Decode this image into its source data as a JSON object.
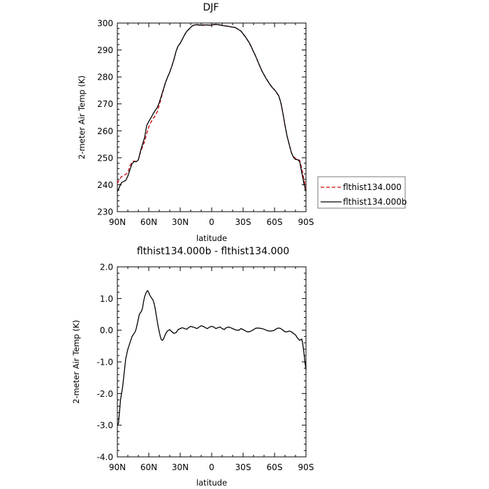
{
  "chart_data": [
    {
      "type": "line",
      "title": "DJF",
      "xlabel": "latitude",
      "ylabel": "2-meter Air Temp (K)",
      "xlim": [
        90,
        -90
      ],
      "ylim": [
        230,
        300
      ],
      "x_ticks": [
        90,
        60,
        30,
        0,
        -30,
        -60,
        -90
      ],
      "x_tick_labels": [
        "90N",
        "60N",
        "30N",
        "0",
        "30S",
        "60S",
        "90S"
      ],
      "y_ticks": [
        230,
        240,
        250,
        260,
        270,
        280,
        290,
        300
      ],
      "y_tick_labels": [
        "230",
        "240",
        "250",
        "260",
        "270",
        "280",
        "290",
        "300"
      ],
      "legend": {
        "placement": "right",
        "entries": [
          "flthist134.000",
          "flthist134.000b"
        ]
      },
      "series": [
        {
          "name": "flthist134.000",
          "color": "#cc0000",
          "style": "dashed",
          "x": [
            90,
            88,
            86,
            84,
            82,
            80,
            78,
            76,
            74,
            72,
            70,
            68,
            66,
            64,
            62,
            60,
            58,
            56,
            54,
            52,
            50,
            48,
            46,
            44,
            42,
            40,
            38,
            36,
            34,
            32,
            30,
            28,
            26,
            24,
            22,
            20,
            18,
            16,
            14,
            12,
            10,
            8,
            6,
            4,
            2,
            0,
            -2,
            -4,
            -6,
            -8,
            -10,
            -12,
            -14,
            -16,
            -18,
            -20,
            -22,
            -24,
            -26,
            -28,
            -30,
            -32,
            -34,
            -36,
            -38,
            -40,
            -42,
            -44,
            -46,
            -48,
            -50,
            -52,
            -54,
            -56,
            -58,
            -60,
            -62,
            -64,
            -66,
            -68,
            -70,
            -72,
            -74,
            -76,
            -78,
            -80,
            -82,
            -84,
            -86,
            -88,
            -90
          ],
          "values": [
            240.5,
            242.0,
            243.0,
            243.4,
            243.9,
            244.4,
            247.0,
            248.4,
            248.8,
            248.6,
            249.2,
            252.0,
            254.0,
            256.0,
            259.0,
            261.5,
            263.2,
            264.5,
            265.5,
            267.0,
            269.5,
            272.5,
            275.2,
            278.0,
            280.0,
            281.8,
            284.0,
            286.5,
            289.5,
            291.5,
            292.5,
            294.0,
            295.5,
            296.8,
            297.6,
            298.4,
            299.1,
            299.3,
            299.4,
            299.2,
            299.1,
            299.2,
            299.3,
            299.3,
            299.2,
            299.3,
            299.4,
            299.5,
            299.4,
            299.3,
            299.1,
            299.0,
            298.9,
            298.8,
            298.6,
            298.5,
            298.4,
            298.0,
            297.5,
            297.0,
            296.0,
            295.0,
            293.8,
            292.6,
            291.0,
            289.3,
            287.7,
            285.8,
            284.0,
            282.2,
            280.8,
            279.4,
            278.2,
            277.0,
            276.0,
            275.2,
            274.2,
            273.0,
            270.5,
            266.5,
            262.0,
            258.0,
            255.0,
            252.0,
            250.5,
            249.7,
            249.5,
            249.0,
            246.0,
            242.0,
            238.5
          ]
        },
        {
          "name": "flthist134.000b",
          "color": "#000000",
          "style": "solid",
          "x": [
            90,
            88,
            86,
            84,
            82,
            80,
            78,
            76,
            74,
            72,
            70,
            68,
            66,
            64,
            62,
            60,
            58,
            56,
            54,
            52,
            50,
            48,
            46,
            44,
            42,
            40,
            38,
            36,
            34,
            32,
            30,
            28,
            26,
            24,
            22,
            20,
            18,
            16,
            14,
            12,
            10,
            8,
            6,
            4,
            2,
            0,
            -2,
            -4,
            -6,
            -8,
            -10,
            -12,
            -14,
            -16,
            -18,
            -20,
            -22,
            -24,
            -26,
            -28,
            -30,
            -32,
            -34,
            -36,
            -38,
            -40,
            -42,
            -44,
            -46,
            -48,
            -50,
            -52,
            -54,
            -56,
            -58,
            -60,
            -62,
            -64,
            -66,
            -68,
            -70,
            -72,
            -74,
            -76,
            -78,
            -80,
            -82,
            -84,
            -86,
            -88,
            -90
          ],
          "values": [
            237.5,
            239.2,
            240.8,
            241.2,
            241.6,
            243.2,
            245.5,
            247.8,
            248.6,
            248.5,
            249.2,
            252.4,
            255.0,
            257.5,
            262.0,
            263.5,
            264.8,
            266.2,
            267.5,
            268.6,
            270.5,
            273.0,
            275.5,
            278.0,
            280.0,
            281.8,
            284.0,
            286.5,
            289.5,
            291.5,
            292.5,
            294.0,
            295.5,
            296.8,
            297.6,
            298.4,
            299.1,
            299.3,
            299.4,
            299.3,
            299.2,
            299.3,
            299.3,
            299.3,
            299.2,
            299.3,
            299.4,
            299.5,
            299.4,
            299.3,
            299.1,
            299.0,
            298.9,
            298.8,
            298.6,
            298.5,
            298.4,
            298.0,
            297.5,
            297.0,
            296.0,
            295.0,
            293.8,
            292.6,
            291.0,
            289.3,
            287.7,
            285.8,
            284.0,
            282.2,
            280.8,
            279.4,
            278.2,
            277.0,
            276.0,
            275.2,
            274.2,
            273.0,
            270.5,
            266.5,
            262.0,
            258.0,
            255.0,
            252.0,
            250.2,
            249.4,
            249.3,
            248.6,
            244.5,
            240.5,
            237.5
          ]
        }
      ]
    },
    {
      "type": "line",
      "title": "flthist134.000b - flthist134.000",
      "xlabel": "latitude",
      "ylabel": "2-meter Air Temp (K)",
      "xlim": [
        90,
        -90
      ],
      "ylim": [
        -4.0,
        2.0
      ],
      "x_ticks": [
        90,
        60,
        30,
        0,
        -30,
        -60,
        -90
      ],
      "x_tick_labels": [
        "90N",
        "60N",
        "30N",
        "0",
        "30S",
        "60S",
        "90S"
      ],
      "y_ticks": [
        -4.0,
        -3.0,
        -2.0,
        -1.0,
        0.0,
        1.0,
        2.0
      ],
      "y_tick_labels": [
        "-4.0",
        "-3.0",
        "-2.0",
        "-1.0",
        "0.0",
        "1.0",
        "2.0"
      ],
      "series": [
        {
          "color": "#000000",
          "style": "solid",
          "x": [
            90,
            89,
            88,
            87,
            86,
            85,
            84,
            83,
            82,
            81,
            80,
            79,
            78,
            77,
            76,
            75,
            74,
            73,
            72,
            71,
            70,
            69,
            68,
            67,
            66,
            65,
            64,
            63,
            62,
            61,
            60,
            59,
            58,
            57,
            56,
            55,
            54,
            53,
            52,
            51,
            50,
            49,
            48,
            47,
            46,
            45,
            44,
            43,
            42,
            41,
            40,
            38,
            36,
            34,
            32,
            30,
            28,
            26,
            24,
            22,
            20,
            18,
            16,
            14,
            12,
            10,
            8,
            6,
            4,
            2,
            0,
            -2,
            -4,
            -6,
            -8,
            -10,
            -12,
            -14,
            -16,
            -18,
            -20,
            -22,
            -24,
            -26,
            -28,
            -30,
            -32,
            -34,
            -36,
            -38,
            -40,
            -42,
            -44,
            -46,
            -48,
            -50,
            -52,
            -54,
            -56,
            -58,
            -60,
            -62,
            -64,
            -66,
            -68,
            -70,
            -72,
            -74,
            -76,
            -78,
            -80,
            -82,
            -84,
            -86,
            -87,
            -88,
            -89,
            -90
          ],
          "values": [
            -3.0,
            -2.95,
            -2.6,
            -2.2,
            -2.0,
            -1.8,
            -1.5,
            -1.2,
            -0.9,
            -0.75,
            -0.6,
            -0.5,
            -0.4,
            -0.3,
            -0.2,
            -0.15,
            -0.1,
            -0.05,
            0.05,
            0.2,
            0.35,
            0.5,
            0.55,
            0.6,
            0.7,
            0.9,
            1.05,
            1.15,
            1.22,
            1.25,
            1.18,
            1.1,
            1.05,
            1.0,
            0.95,
            0.85,
            0.7,
            0.5,
            0.3,
            0.1,
            -0.05,
            -0.2,
            -0.3,
            -0.32,
            -0.28,
            -0.2,
            -0.12,
            -0.06,
            -0.02,
            0.0,
            0.02,
            -0.05,
            -0.1,
            -0.08,
            0.02,
            0.05,
            0.08,
            0.05,
            0.03,
            0.08,
            0.12,
            0.1,
            0.08,
            0.05,
            0.1,
            0.14,
            0.12,
            0.08,
            0.05,
            0.1,
            0.12,
            0.1,
            0.05,
            0.08,
            0.1,
            0.05,
            0.02,
            0.08,
            0.1,
            0.08,
            0.05,
            0.02,
            0.0,
            0.0,
            0.05,
            0.02,
            -0.02,
            -0.05,
            -0.05,
            -0.02,
            0.02,
            0.06,
            0.07,
            0.06,
            0.05,
            0.03,
            0.0,
            -0.02,
            -0.03,
            -0.02,
            0.0,
            0.05,
            0.07,
            0.05,
            0.0,
            -0.05,
            -0.05,
            -0.03,
            -0.05,
            -0.1,
            -0.15,
            -0.25,
            -0.32,
            -0.28,
            -0.45,
            -0.7,
            -1.0,
            -1.25
          ]
        }
      ]
    }
  ]
}
